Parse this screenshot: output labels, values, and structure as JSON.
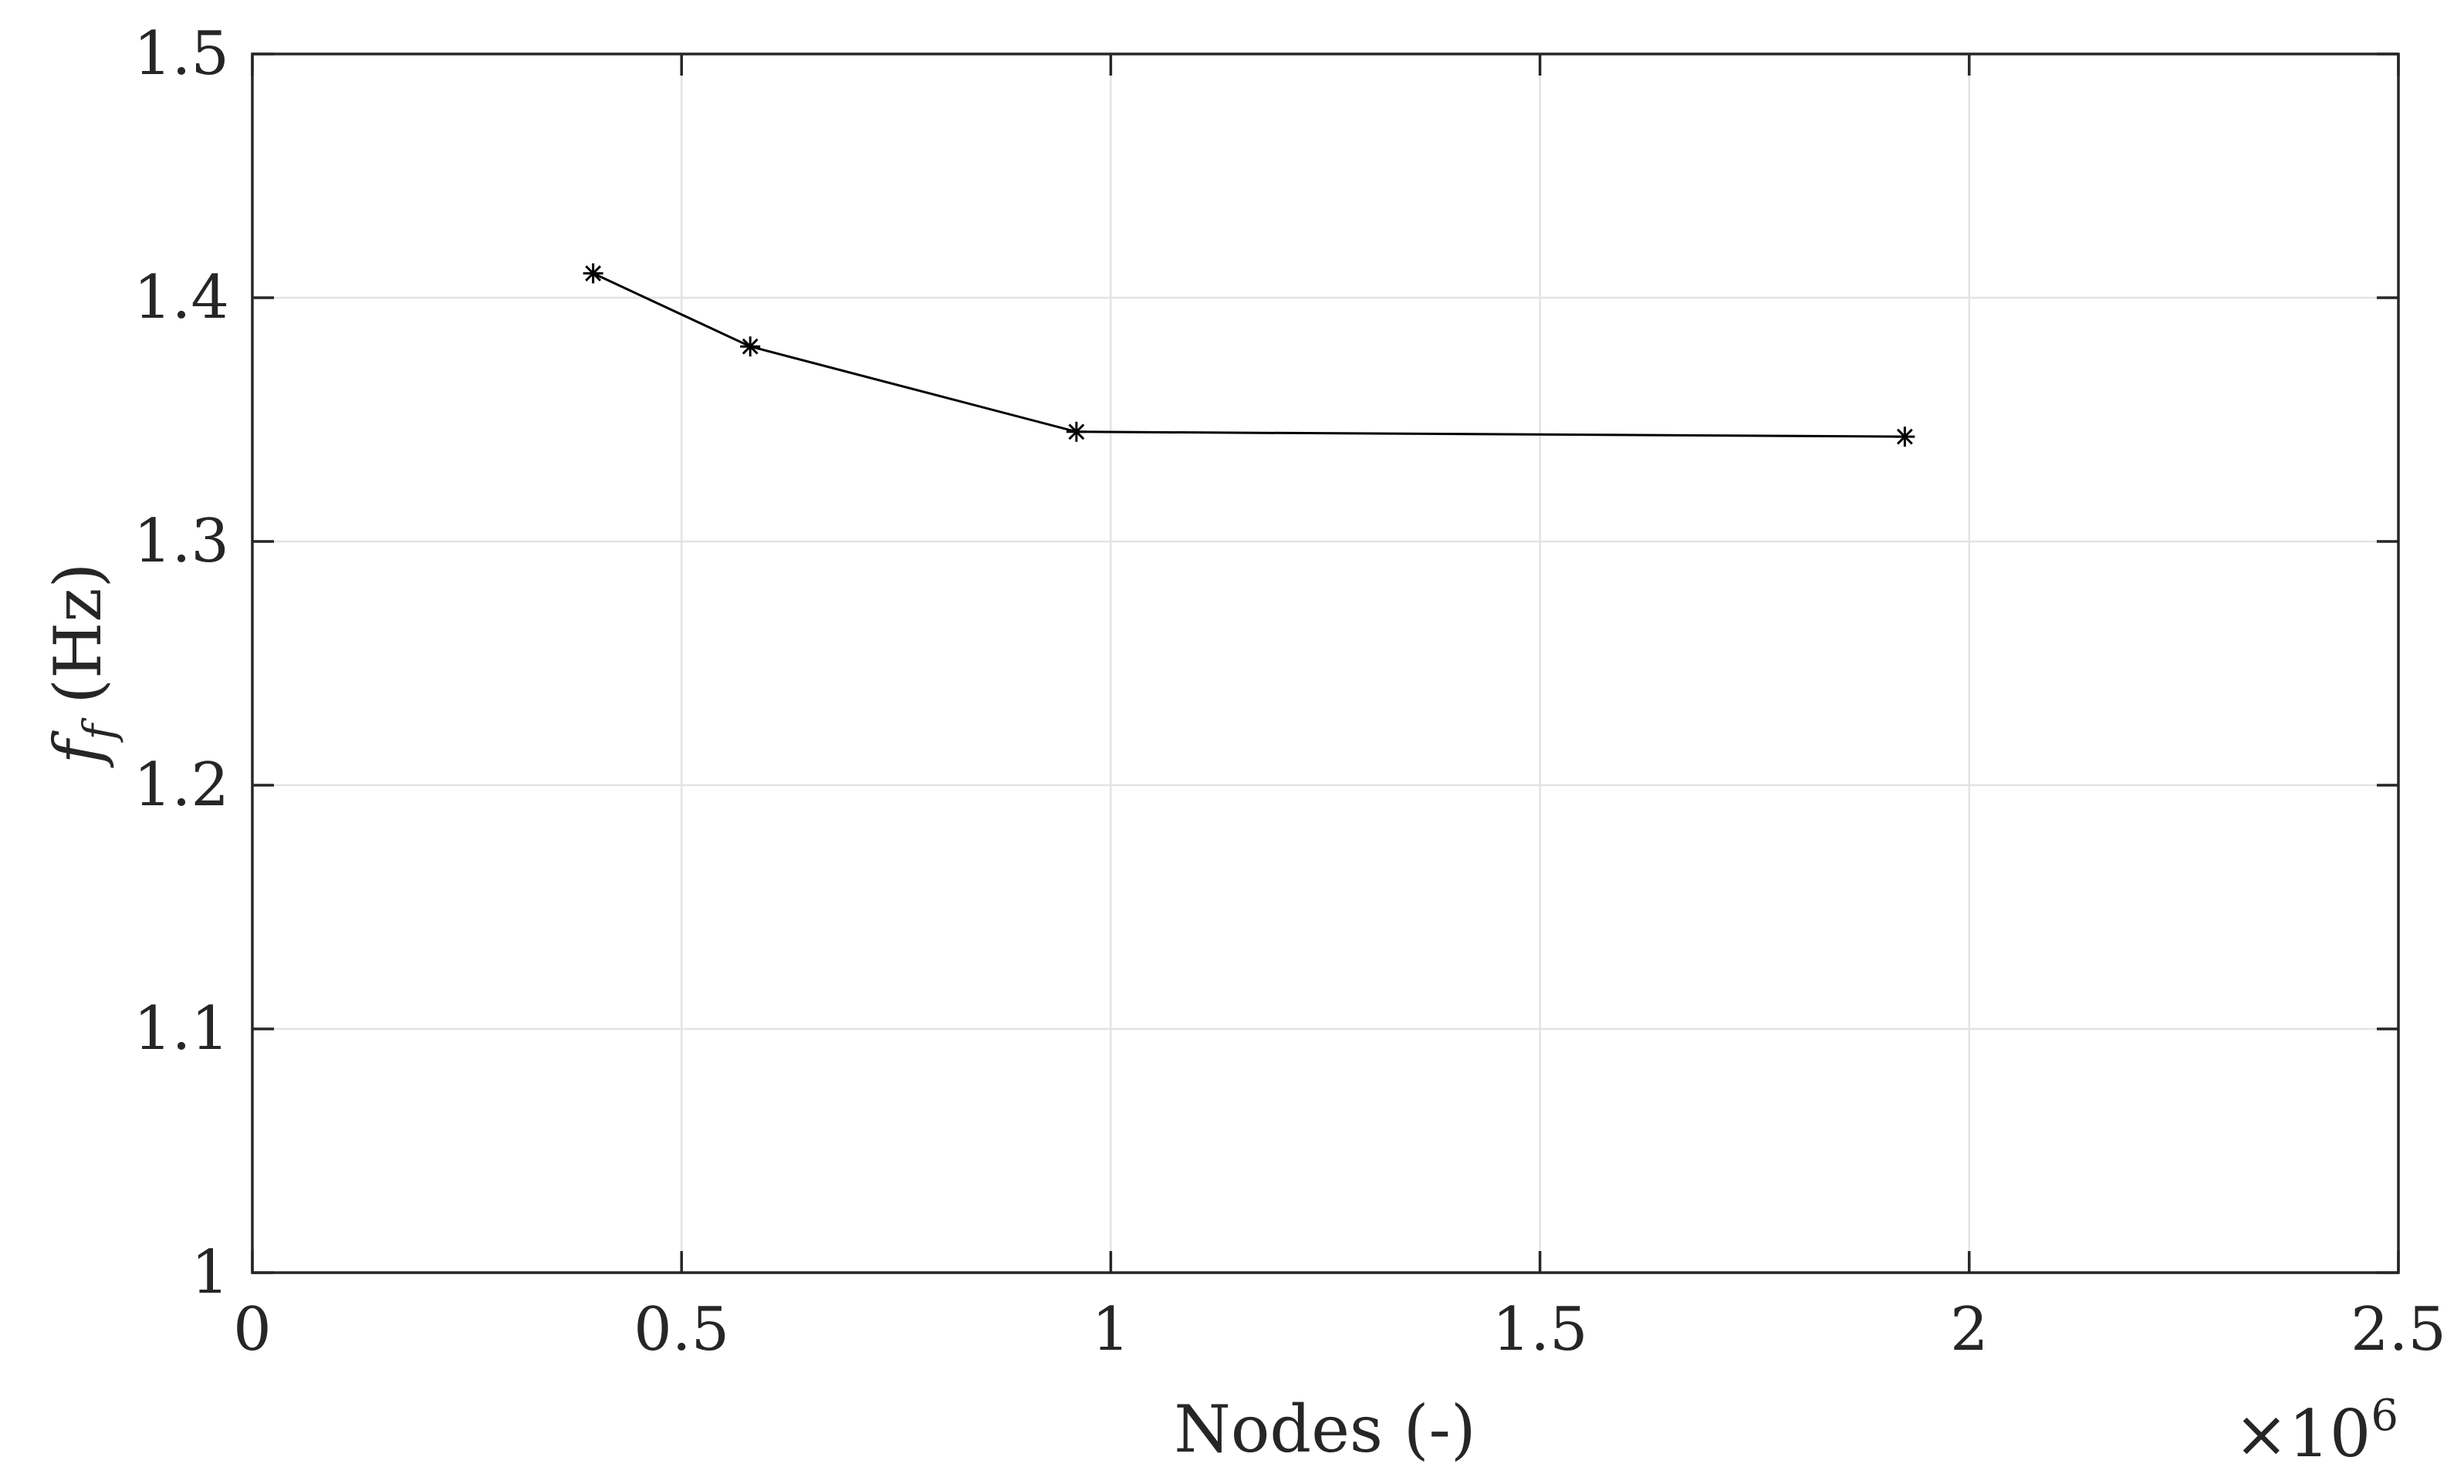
{
  "chart_data": {
    "type": "line",
    "xlabel": "Nodes (-)",
    "ylabel_symbol": "f",
    "ylabel_subscript": "f",
    "ylabel_unit": "(Hz)",
    "x_multiplier_prefix": "×10",
    "x_multiplier_exponent": "6",
    "xlim": [
      0,
      2.5
    ],
    "ylim": [
      1,
      1.5
    ],
    "xticks": [
      0,
      0.5,
      1,
      1.5,
      2,
      2.5
    ],
    "xtick_labels": [
      "0",
      "0.5",
      "1",
      "1.5",
      "2",
      "2.5"
    ],
    "yticks": [
      1,
      1.1,
      1.2,
      1.3,
      1.4,
      1.5
    ],
    "ytick_labels": [
      "1",
      "1.1",
      "1.2",
      "1.3",
      "1.4",
      "1.5"
    ],
    "grid": true,
    "marker": "asterisk",
    "line_color": "#000000",
    "series": [
      {
        "x": [
          0.397,
          0.58,
          0.96,
          1.925
        ],
        "y": [
          1.41,
          1.38,
          1.345,
          1.343
        ]
      }
    ]
  }
}
